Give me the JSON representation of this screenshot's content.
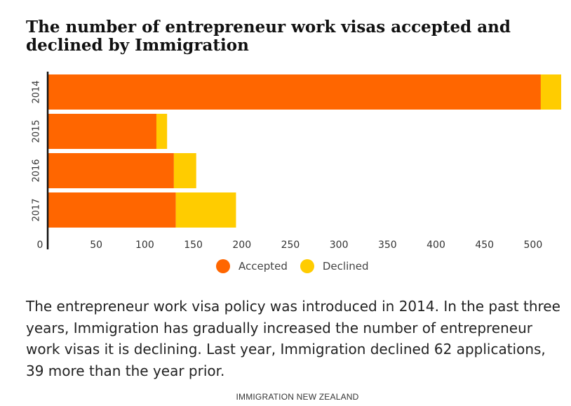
{
  "chart_data": {
    "type": "bar",
    "orientation": "horizontal",
    "stacked": true,
    "title": "The number of entrepreneur work visas accepted and declined by Immigration",
    "categories": [
      "2014",
      "2015",
      "2016",
      "2017"
    ],
    "series": [
      {
        "name": "Accepted",
        "color": "#ff6600",
        "values": [
          508,
          112,
          130,
          132
        ]
      },
      {
        "name": "Declined",
        "color": "#ffcc00",
        "values": [
          21,
          11,
          23,
          62
        ]
      }
    ],
    "x_ticks": [
      0,
      50,
      100,
      150,
      200,
      250,
      300,
      350,
      400,
      450,
      500
    ],
    "xlim": [
      0,
      529
    ],
    "xlabel": "",
    "ylabel": "",
    "grid": false,
    "legend_position": "bottom-center"
  },
  "description": "The entrepreneur work visa policy was introduced in 2014. In the past three years, Immigration has gradually increased the number of entrepreneur work visas it is declining. Last year, Immigration declined 62 applications, 39 more than the year prior.",
  "source": "IMMIGRATION NEW ZEALAND"
}
